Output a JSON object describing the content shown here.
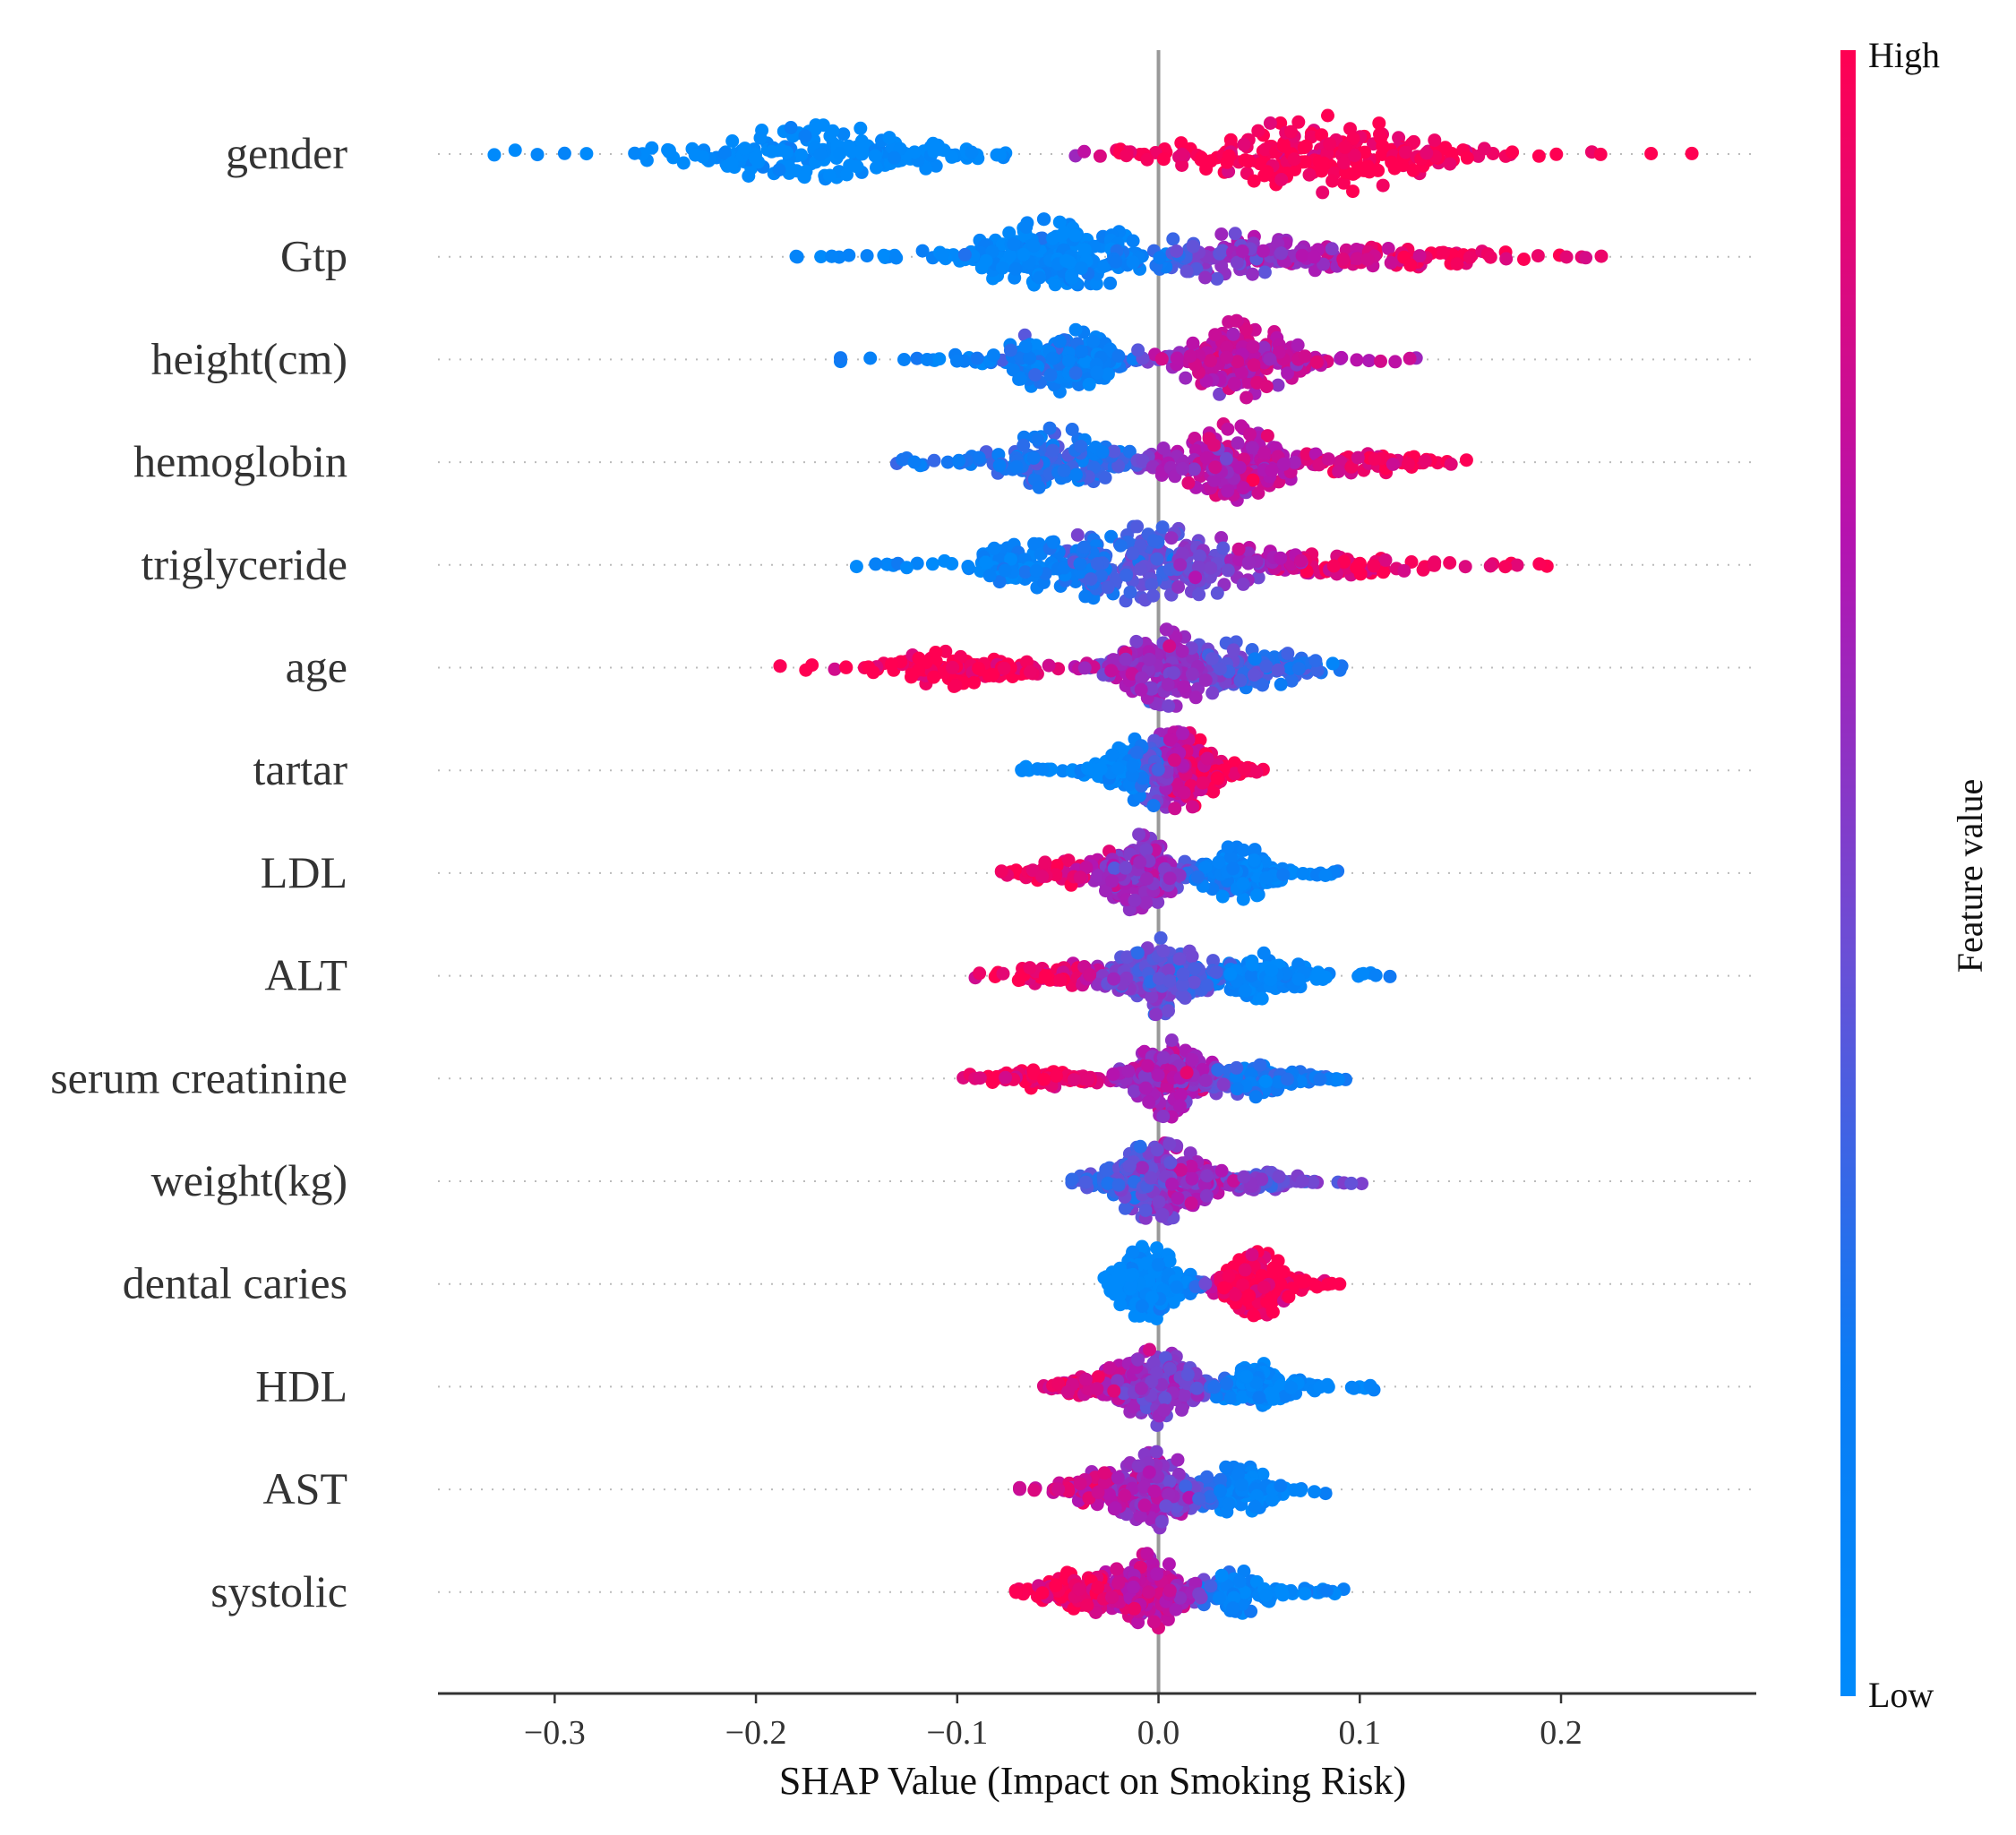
{
  "chart_data": {
    "type": "scatter",
    "subtype": "beeswarm",
    "title": "",
    "xlabel": "SHAP Value (Impact on Smoking Risk)",
    "ylabel": "",
    "xlim": [
      -0.358,
      0.297
    ],
    "xticks": [
      -0.3,
      -0.2,
      -0.1,
      0.0,
      0.1,
      0.2
    ],
    "xtick_labels": [
      "−0.3",
      "−0.2",
      "−0.1",
      "0.0",
      "0.1",
      "0.2"
    ],
    "zero_line": 0.0,
    "colorbar": {
      "label": "Feature value",
      "high_label": "High",
      "low_label": "Low",
      "low_color": "#008afb",
      "high_color": "#ff0052"
    },
    "features": [
      {
        "name": "gender",
        "min": -0.33,
        "max": 0.265,
        "modes": [
          {
            "x": -0.17,
            "w": 0.42,
            "color": 0.0
          },
          {
            "x": 0.085,
            "w": 0.58,
            "color": 1.0
          }
        ]
      },
      {
        "name": "Gtp",
        "min": -0.18,
        "max": 0.22,
        "modes": [
          {
            "x": -0.05,
            "w": 0.55,
            "color": 0.05
          },
          {
            "x": 0.04,
            "w": 0.3,
            "color": 0.55
          },
          {
            "x": 0.12,
            "w": 0.15,
            "color": 0.95
          }
        ]
      },
      {
        "name": "height(cm)",
        "min": -0.158,
        "max": 0.128,
        "modes": [
          {
            "x": -0.05,
            "w": 0.45,
            "color": 0.15
          },
          {
            "x": 0.04,
            "w": 0.55,
            "color": 0.75
          }
        ]
      },
      {
        "name": "hemoglobin",
        "min": -0.13,
        "max": 0.153,
        "modes": [
          {
            "x": -0.05,
            "w": 0.4,
            "color": 0.25
          },
          {
            "x": 0.035,
            "w": 0.45,
            "color": 0.72
          },
          {
            "x": 0.1,
            "w": 0.15,
            "color": 0.95
          }
        ]
      },
      {
        "name": "triglyceride",
        "min": -0.15,
        "max": 0.193,
        "modes": [
          {
            "x": -0.07,
            "w": 0.2,
            "color": 0.03
          },
          {
            "x": -0.02,
            "w": 0.35,
            "color": 0.3
          },
          {
            "x": 0.02,
            "w": 0.3,
            "color": 0.55
          },
          {
            "x": 0.09,
            "w": 0.15,
            "color": 0.95
          }
        ]
      },
      {
        "name": "age",
        "min": -0.188,
        "max": 0.091,
        "modes": [
          {
            "x": -0.1,
            "w": 0.25,
            "color": 1.0
          },
          {
            "x": 0.005,
            "w": 0.5,
            "color": 0.6
          },
          {
            "x": 0.05,
            "w": 0.25,
            "color": 0.25
          }
        ]
      },
      {
        "name": "tartar",
        "min": -0.068,
        "max": 0.052,
        "modes": [
          {
            "x": -0.01,
            "w": 0.45,
            "color": 0.0
          },
          {
            "x": 0.015,
            "w": 0.55,
            "color": 1.0
          }
        ]
      },
      {
        "name": "LDL",
        "min": -0.078,
        "max": 0.089,
        "modes": [
          {
            "x": -0.05,
            "w": 0.15,
            "color": 0.95
          },
          {
            "x": -0.01,
            "w": 0.5,
            "color": 0.6
          },
          {
            "x": 0.04,
            "w": 0.35,
            "color": 0.1
          }
        ]
      },
      {
        "name": "ALT",
        "min": -0.091,
        "max": 0.115,
        "modes": [
          {
            "x": -0.05,
            "w": 0.15,
            "color": 0.95
          },
          {
            "x": 0.0,
            "w": 0.55,
            "color": 0.45
          },
          {
            "x": 0.05,
            "w": 0.3,
            "color": 0.05
          }
        ]
      },
      {
        "name": "serum creatinine",
        "min": -0.097,
        "max": 0.093,
        "modes": [
          {
            "x": -0.06,
            "w": 0.15,
            "color": 0.95
          },
          {
            "x": 0.005,
            "w": 0.6,
            "color": 0.65
          },
          {
            "x": 0.05,
            "w": 0.25,
            "color": 0.2
          }
        ]
      },
      {
        "name": "weight(kg)",
        "min": -0.043,
        "max": 0.101,
        "modes": [
          {
            "x": -0.01,
            "w": 0.45,
            "color": 0.3
          },
          {
            "x": 0.01,
            "w": 0.45,
            "color": 0.7
          },
          {
            "x": 0.05,
            "w": 0.1,
            "color": 0.45
          }
        ]
      },
      {
        "name": "dental caries",
        "min": -0.027,
        "max": 0.09,
        "modes": [
          {
            "x": -0.005,
            "w": 0.55,
            "color": 0.0
          },
          {
            "x": 0.05,
            "w": 0.45,
            "color": 1.0
          }
        ]
      },
      {
        "name": "HDL",
        "min": -0.057,
        "max": 0.107,
        "modes": [
          {
            "x": -0.03,
            "w": 0.2,
            "color": 0.85
          },
          {
            "x": 0.0,
            "w": 0.5,
            "color": 0.55
          },
          {
            "x": 0.05,
            "w": 0.3,
            "color": 0.05
          }
        ]
      },
      {
        "name": "AST",
        "min": -0.069,
        "max": 0.083,
        "modes": [
          {
            "x": -0.03,
            "w": 0.2,
            "color": 0.8
          },
          {
            "x": 0.0,
            "w": 0.5,
            "color": 0.6
          },
          {
            "x": 0.04,
            "w": 0.3,
            "color": 0.1
          }
        ]
      },
      {
        "name": "systolic",
        "min": -0.071,
        "max": 0.092,
        "modes": [
          {
            "x": -0.04,
            "w": 0.25,
            "color": 0.97
          },
          {
            "x": -0.005,
            "w": 0.5,
            "color": 0.75
          },
          {
            "x": 0.04,
            "w": 0.25,
            "color": 0.08
          }
        ]
      }
    ]
  }
}
